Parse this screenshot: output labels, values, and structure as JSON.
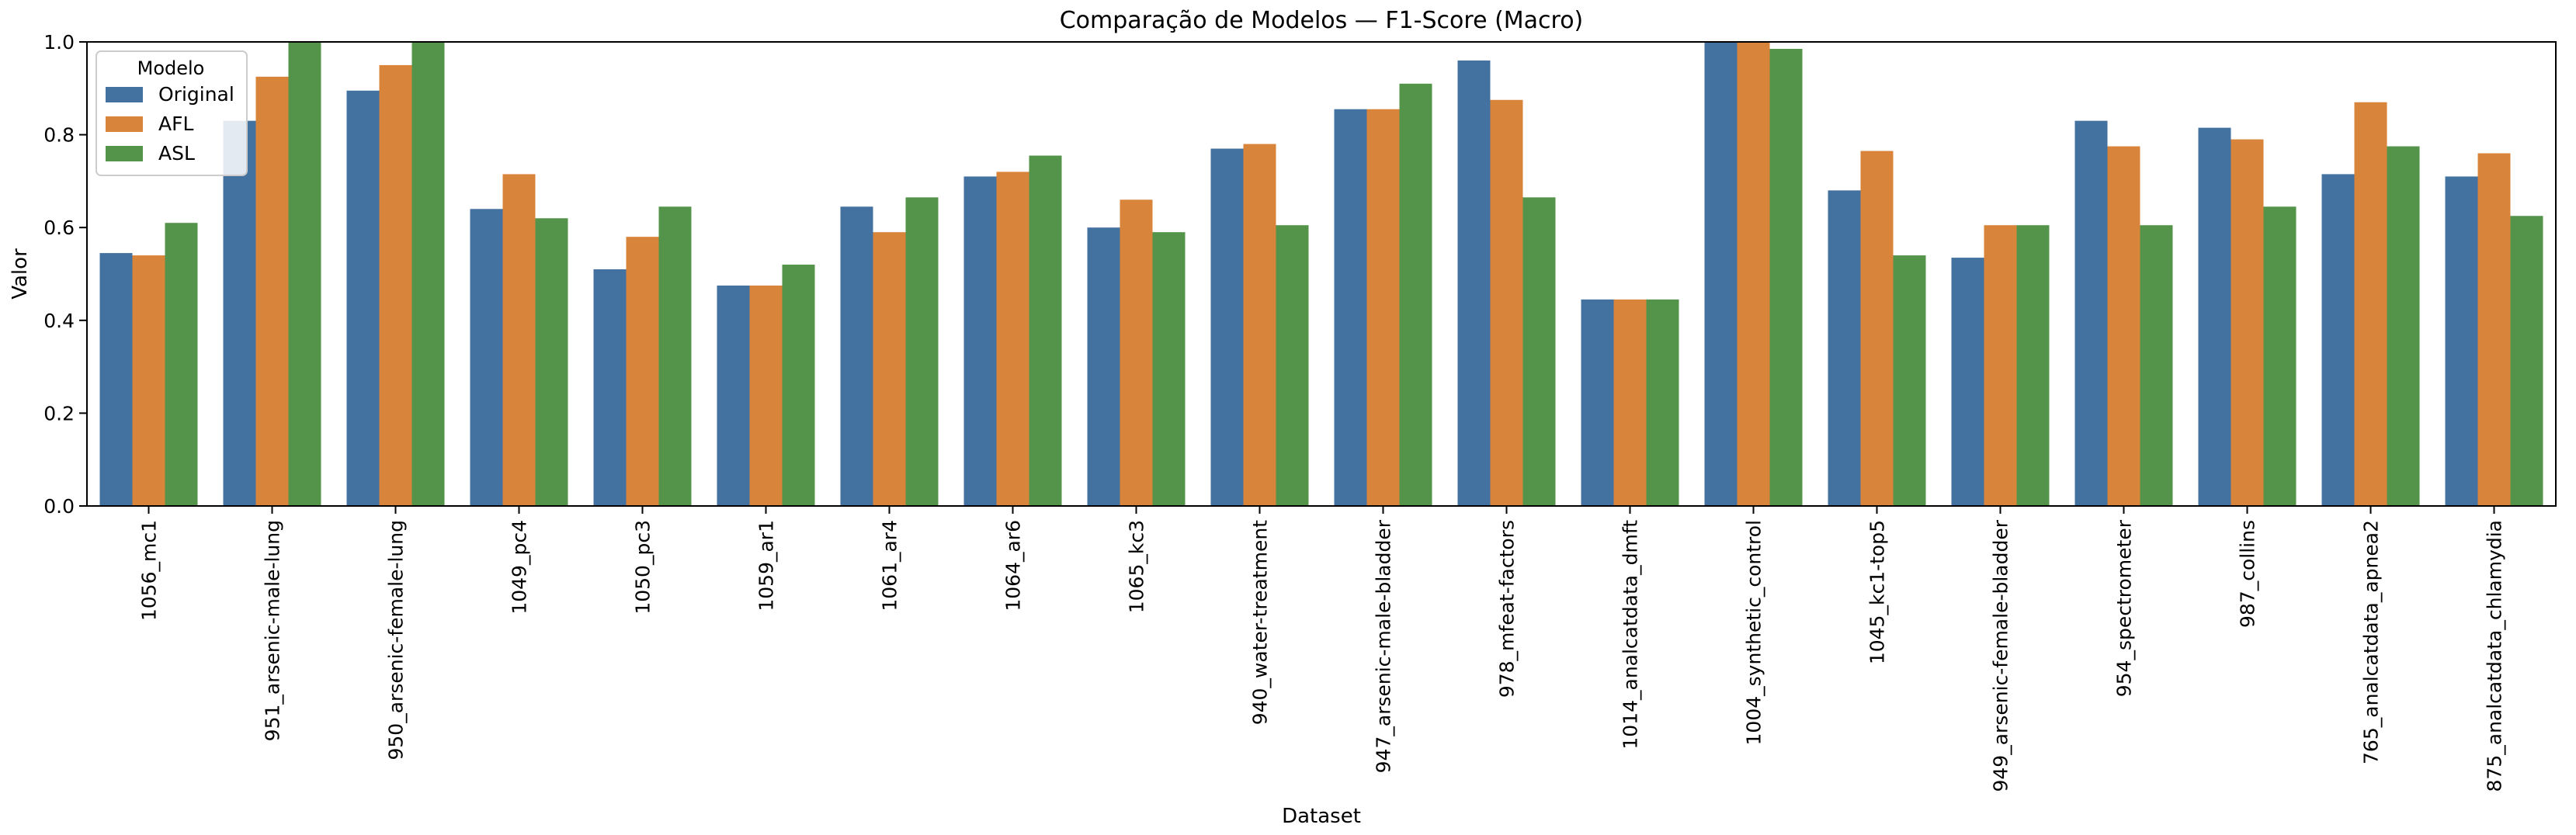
{
  "chart_data": {
    "type": "bar",
    "title": "Comparação de Modelos — F1-Score (Macro)",
    "xlabel": "Dataset",
    "ylabel": "Valor",
    "ylim": [
      0,
      1.0
    ],
    "yticks": [
      "0.0",
      "0.2",
      "0.4",
      "0.6",
      "0.8",
      "1.0"
    ],
    "grid": false,
    "legend": {
      "title": "Modelo",
      "placement": "top-left"
    },
    "categories": [
      "1056_mc1",
      "951_arsenic-male-lung",
      "950_arsenic-female-lung",
      "1049_pc4",
      "1050_pc3",
      "1059_ar1",
      "1061_ar4",
      "1064_ar6",
      "1065_kc3",
      "940_water-treatment",
      "947_arsenic-male-bladder",
      "978_mfeat-factors",
      "1014_analcatdata_dmft",
      "1004_synthetic_control",
      "1045_kc1-top5",
      "949_arsenic-female-bladder",
      "954_spectrometer",
      "987_collins",
      "765_analcatdata_apnea2",
      "875_analcatdata_chlamydia"
    ],
    "series": [
      {
        "name": "Original",
        "color": "#4472a0",
        "values": [
          0.545,
          0.83,
          0.895,
          0.64,
          0.51,
          0.475,
          0.645,
          0.71,
          0.6,
          0.77,
          0.855,
          0.96,
          0.445,
          1.0,
          0.68,
          0.535,
          0.83,
          0.815,
          0.715,
          0.71
        ]
      },
      {
        "name": "AFL",
        "color": "#d9843b",
        "values": [
          0.54,
          0.925,
          0.95,
          0.715,
          0.58,
          0.475,
          0.59,
          0.72,
          0.66,
          0.78,
          0.855,
          0.875,
          0.445,
          1.0,
          0.765,
          0.605,
          0.775,
          0.79,
          0.87,
          0.76
        ]
      },
      {
        "name": "ASL",
        "color": "#54944a",
        "values": [
          0.61,
          1.0,
          1.0,
          0.62,
          0.645,
          0.52,
          0.665,
          0.755,
          0.59,
          0.605,
          0.91,
          0.665,
          0.445,
          0.985,
          0.54,
          0.605,
          0.605,
          0.645,
          0.775,
          0.625
        ]
      }
    ]
  }
}
